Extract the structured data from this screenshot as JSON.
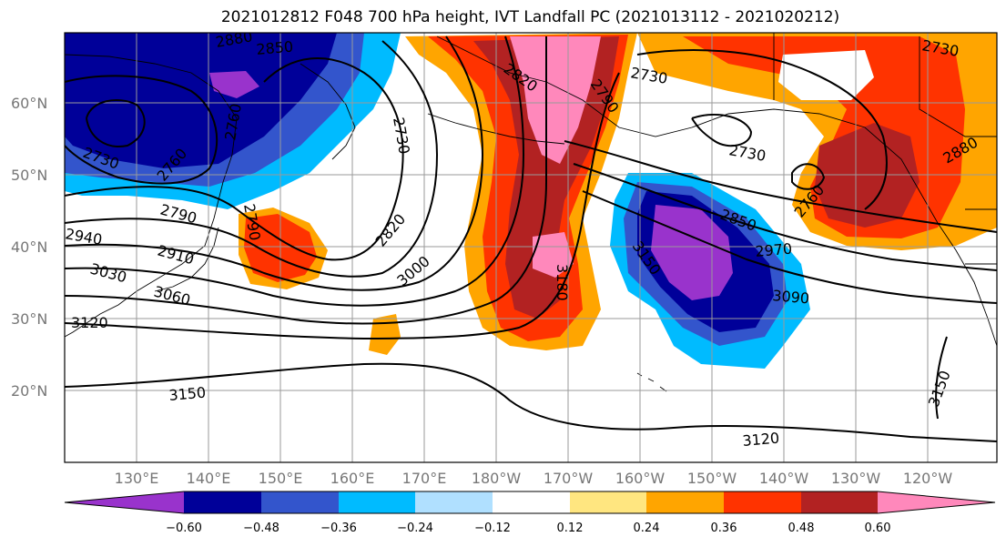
{
  "title": "2021012812 F048 700 hPa height, IVT Landfall PC (2021013112 - 2021020212)",
  "latitude_labels": [
    "60°N",
    "50°N",
    "40°N",
    "30°N",
    "20°N"
  ],
  "longitude_labels": [
    "130°E",
    "140°E",
    "150°E",
    "160°E",
    "170°E",
    "180°W",
    "170°W",
    "160°W",
    "150°W",
    "140°W",
    "130°W",
    "120°W"
  ],
  "colorbar": {
    "colors": [
      "#9933cc",
      "#000099",
      "#3355cc",
      "#00bbff",
      "#b0e0ff",
      "#ffffff",
      "#ffe680",
      "#ffa500",
      "#ff3300",
      "#b22222",
      "#ff88bb"
    ],
    "tick_labels": [
      "−0.60",
      "−0.48",
      "−0.36",
      "−0.24",
      "−0.12",
      "0.12",
      "0.24",
      "0.36",
      "0.48",
      "0.60"
    ]
  },
  "contour_labels": [
    "2880",
    "2850",
    "2730",
    "2760",
    "2760",
    "2790",
    "2790",
    "2940",
    "2910",
    "3030",
    "3060",
    "3120",
    "3150",
    "2820",
    "3000",
    "2820",
    "2790",
    "2730",
    "2730",
    "2730",
    "2850",
    "2970",
    "3090",
    "3150",
    "2880",
    "2760",
    "3180",
    "3150",
    "3120",
    "2730"
  ]
}
